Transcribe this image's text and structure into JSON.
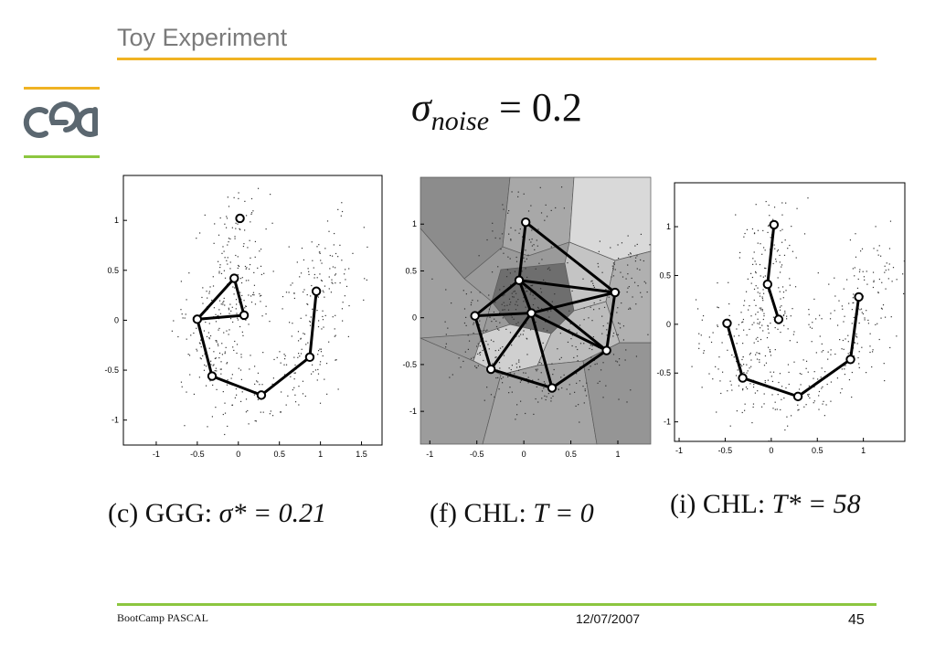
{
  "slide": {
    "title": "Toy Experiment",
    "formula": {
      "symbol": "σ",
      "subscript": "noise",
      "rest": " = 0.2"
    }
  },
  "captions": [
    {
      "prefix": "(c) GGG: ",
      "math": "σ* = 0.21"
    },
    {
      "prefix": "(f) CHL: ",
      "math": "T = 0"
    },
    {
      "prefix": "(i) CHL: ",
      "math": "T* = 58"
    }
  ],
  "footer": {
    "left": "BootCamp PASCAL",
    "date": "12/07/2007",
    "page": "45"
  },
  "colors": {
    "title_rule": "#f0b323",
    "footer_rule": "#8cc63f",
    "logo": "#5b6770",
    "region_dark": "#6e6e6e",
    "region_light": "#d9d9d9"
  },
  "logo": {
    "icon": "cea-logo"
  },
  "chart_data": [
    {
      "type": "scatter",
      "panel": "c",
      "xlim": [
        -1.4,
        1.75
      ],
      "ylim": [
        -1.25,
        1.45
      ],
      "x_ticks": [
        -1,
        -0.5,
        0,
        0.5,
        1,
        1.5
      ],
      "y_ticks": [
        -1,
        -0.5,
        0,
        0.5,
        1
      ],
      "tick_labels_x": [
        "-1",
        "-0.5",
        "0",
        "0.5",
        "1",
        "1.5"
      ],
      "tick_labels_y": [
        "-1",
        "-0.5",
        "0",
        "0.5",
        "1"
      ],
      "nodes": [
        [
          0.02,
          1.02
        ],
        [
          -0.05,
          0.42
        ],
        [
          0.07,
          0.05
        ],
        [
          -0.5,
          0.01
        ],
        [
          -0.32,
          -0.56
        ],
        [
          0.28,
          -0.75
        ],
        [
          0.87,
          -0.37
        ],
        [
          0.95,
          0.29
        ]
      ],
      "edges": [
        [
          1,
          2
        ],
        [
          2,
          3
        ],
        [
          3,
          1
        ],
        [
          3,
          4
        ],
        [
          4,
          5
        ],
        [
          5,
          6
        ],
        [
          6,
          7
        ]
      ]
    },
    {
      "type": "scatter",
      "panel": "f",
      "xlim": [
        -1.1,
        1.35
      ],
      "ylim": [
        -1.35,
        1.5
      ],
      "x_ticks": [
        -1,
        -0.5,
        0,
        0.5,
        1
      ],
      "y_ticks": [
        -1,
        -0.5,
        0,
        0.5,
        1
      ],
      "tick_labels_x": [
        "-1",
        "-0.5",
        "0",
        "0.5",
        "1"
      ],
      "tick_labels_y": [
        "-1",
        "-0.5",
        "0",
        "0.5",
        "1"
      ],
      "nodes": [
        [
          0.02,
          1.02
        ],
        [
          -0.05,
          0.4
        ],
        [
          0.08,
          0.05
        ],
        [
          -0.52,
          0.02
        ],
        [
          -0.35,
          -0.55
        ],
        [
          0.3,
          -0.75
        ],
        [
          0.88,
          -0.35
        ],
        [
          0.97,
          0.27
        ]
      ],
      "edges": [
        [
          0,
          1
        ],
        [
          0,
          7
        ],
        [
          1,
          3
        ],
        [
          1,
          7
        ],
        [
          1,
          2
        ],
        [
          1,
          6
        ],
        [
          2,
          3
        ],
        [
          2,
          4
        ],
        [
          2,
          5
        ],
        [
          2,
          6
        ],
        [
          2,
          7
        ],
        [
          3,
          4
        ],
        [
          4,
          5
        ],
        [
          5,
          6
        ],
        [
          6,
          7
        ]
      ]
    },
    {
      "type": "scatter",
      "panel": "i",
      "xlim": [
        -1.05,
        1.45
      ],
      "ylim": [
        -1.2,
        1.45
      ],
      "x_ticks": [
        -1,
        -0.5,
        0,
        0.5,
        1
      ],
      "y_ticks": [
        -1,
        -0.5,
        0,
        0.5,
        1
      ],
      "tick_labels_x": [
        "-1",
        "-0.5",
        "0",
        "0.5",
        "1"
      ],
      "tick_labels_y": [
        "-1",
        "-0.5",
        "0",
        "0.5",
        "1"
      ],
      "nodes": [
        [
          0.03,
          1.02
        ],
        [
          -0.04,
          0.41
        ],
        [
          0.08,
          0.05
        ],
        [
          -0.48,
          0.01
        ],
        [
          -0.31,
          -0.55
        ],
        [
          0.29,
          -0.74
        ],
        [
          0.86,
          -0.36
        ],
        [
          0.95,
          0.28
        ]
      ],
      "edges": [
        [
          0,
          1
        ],
        [
          1,
          2
        ],
        [
          3,
          4
        ],
        [
          4,
          5
        ],
        [
          5,
          6
        ],
        [
          6,
          7
        ]
      ]
    }
  ]
}
